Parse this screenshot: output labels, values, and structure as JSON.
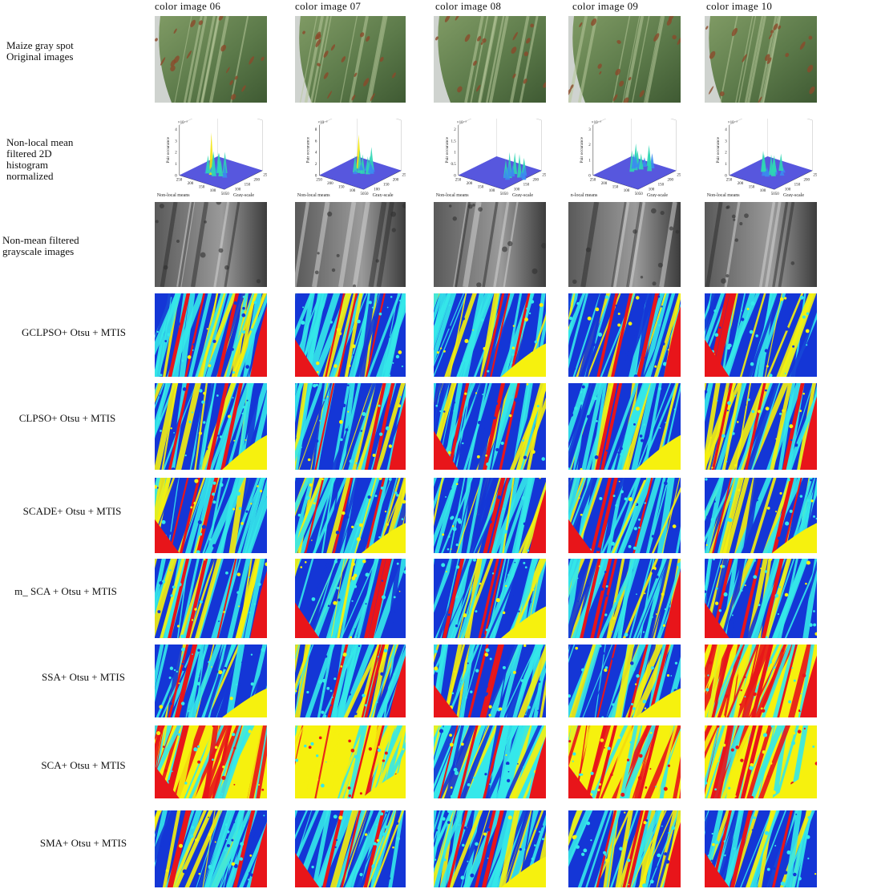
{
  "columns": [
    "color image 06",
    "color image 07",
    "color image 08",
    "color image 09",
    "color image 10"
  ],
  "rows": [
    {
      "label": "Maize gray spot\nOriginal images",
      "kind": "photo"
    },
    {
      "label": "Non-local mean\nfiltered 2D\nhistogram\nnormalized",
      "kind": "histogram"
    },
    {
      "label": "Non-mean filtered\ngrayscale images",
      "kind": "gray"
    },
    {
      "label": "GCLPSO+ Otsu + MTIS",
      "kind": "seg"
    },
    {
      "label": "CLPSO+ Otsu + MTIS",
      "kind": "seg"
    },
    {
      "label": "SCADE+ Otsu + MTIS",
      "kind": "seg"
    },
    {
      "label": "m_ SCA + Otsu + MTIS",
      "kind": "seg"
    },
    {
      "label": "SSA+ Otsu + MTIS",
      "kind": "seg"
    },
    {
      "label": "SCA+ Otsu + MTIS",
      "kind": "seg"
    },
    {
      "label": "SMA+ Otsu + MTIS",
      "kind": "seg"
    }
  ],
  "histogram": {
    "zlabel": "Pair occurance",
    "xlabels": [
      "Non-local means",
      "Non-local means",
      "Non-local means",
      "n-local means",
      "Non-local means"
    ],
    "ylabel": "Gray-scale",
    "scale": "×10⁻³",
    "x_ticks": [
      "250",
      "200",
      "150",
      "100",
      "50"
    ],
    "y_ticks": [
      "50",
      "100",
      "150",
      "200",
      "250"
    ],
    "z_ticks": [
      [
        "0",
        "1",
        "2",
        "3",
        "4"
      ],
      [
        "0",
        "2",
        "4",
        "6",
        "8"
      ],
      [
        "0",
        "0.5",
        "1",
        "1.5",
        "2"
      ],
      [
        "0",
        "1",
        "2",
        "3"
      ],
      [
        "0",
        "1",
        "2",
        "3",
        "4"
      ]
    ]
  },
  "colors": {
    "seg_red": "#e8151a",
    "seg_yellow": "#f6f10e",
    "seg_cyan": "#35e8ea",
    "seg_blue": "#1436d6",
    "leaf_green": "#5c7a4a",
    "hist_surface": "#3a3ad8"
  }
}
